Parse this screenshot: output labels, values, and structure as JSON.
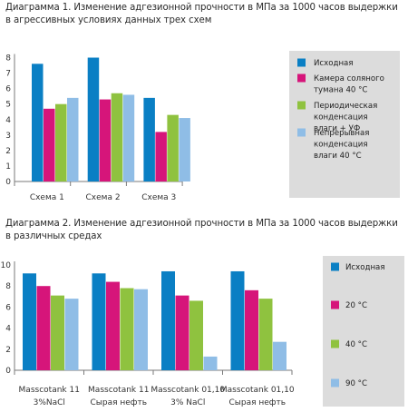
{
  "caption1": "Диаграмма 1. Изменение адгезионной прочности в МПа за 1000 часов выдержки в агрессивных условиях данных трех схем",
  "caption2": "Диаграмма 2. Изменение адгезионной прочности в МПа за 1000 часов выдержки в различных средах",
  "chart_data": [
    {
      "type": "bar",
      "categories": [
        "Схема 1",
        "Схема 2",
        "Схема 3"
      ],
      "series": [
        {
          "name": "Исходная",
          "color": "#0a7fc4",
          "values": [
            7.6,
            8.0,
            5.4
          ]
        },
        {
          "name": "Камера соляного тумана 40 °C",
          "color": "#d6157a",
          "values": [
            4.7,
            5.3,
            3.2
          ]
        },
        {
          "name": "Периодическая конденсация влаги + УФ",
          "color": "#8fc23f",
          "values": [
            5.0,
            5.7,
            4.3
          ]
        },
        {
          "name": "Непрерывная конденсация влаги 40 °C",
          "color": "#8fbde6",
          "values": [
            5.4,
            5.6,
            4.1
          ]
        }
      ],
      "ylim": [
        0,
        8
      ],
      "yticks": [
        0,
        1,
        2,
        3,
        4,
        5,
        6,
        7,
        8
      ],
      "legend": [
        [
          "Исходная"
        ],
        [
          "Камера соляного",
          "тумана 40 °C"
        ],
        [
          "Периодическая",
          "конденсация",
          "влаги + УФ"
        ],
        [
          "Непрерывная",
          "конденсация",
          "влаги 40 °C"
        ]
      ],
      "legend_position": "right"
    },
    {
      "type": "bar",
      "categories": [
        [
          "Masscotank 11",
          "3%NaCl"
        ],
        [
          "Masscotank 11",
          "Сырая нефть"
        ],
        [
          "Masscotank 01,10",
          "3% NaCl"
        ],
        [
          "Masscotank 01,10",
          "Сырая нефть"
        ]
      ],
      "series": [
        {
          "name": "Исходная",
          "color": "#0a7fc4",
          "values": [
            9.2,
            9.2,
            9.4,
            9.4
          ]
        },
        {
          "name": "20 °C",
          "color": "#d6157a",
          "values": [
            8.0,
            8.4,
            7.1,
            7.6
          ]
        },
        {
          "name": "40 °C",
          "color": "#8fc23f",
          "values": [
            7.1,
            7.8,
            6.6,
            6.8
          ]
        },
        {
          "name": "90 °C",
          "color": "#8fbde6",
          "values": [
            6.8,
            7.7,
            1.3,
            2.7
          ]
        }
      ],
      "ylim": [
        0,
        10
      ],
      "yticks": [
        0,
        2,
        4,
        6,
        8,
        10
      ],
      "legend": [
        [
          "Исходная"
        ],
        [
          "20 °C"
        ],
        [
          "40 °C"
        ],
        [
          "90 °C"
        ]
      ],
      "legend_position": "right"
    }
  ]
}
